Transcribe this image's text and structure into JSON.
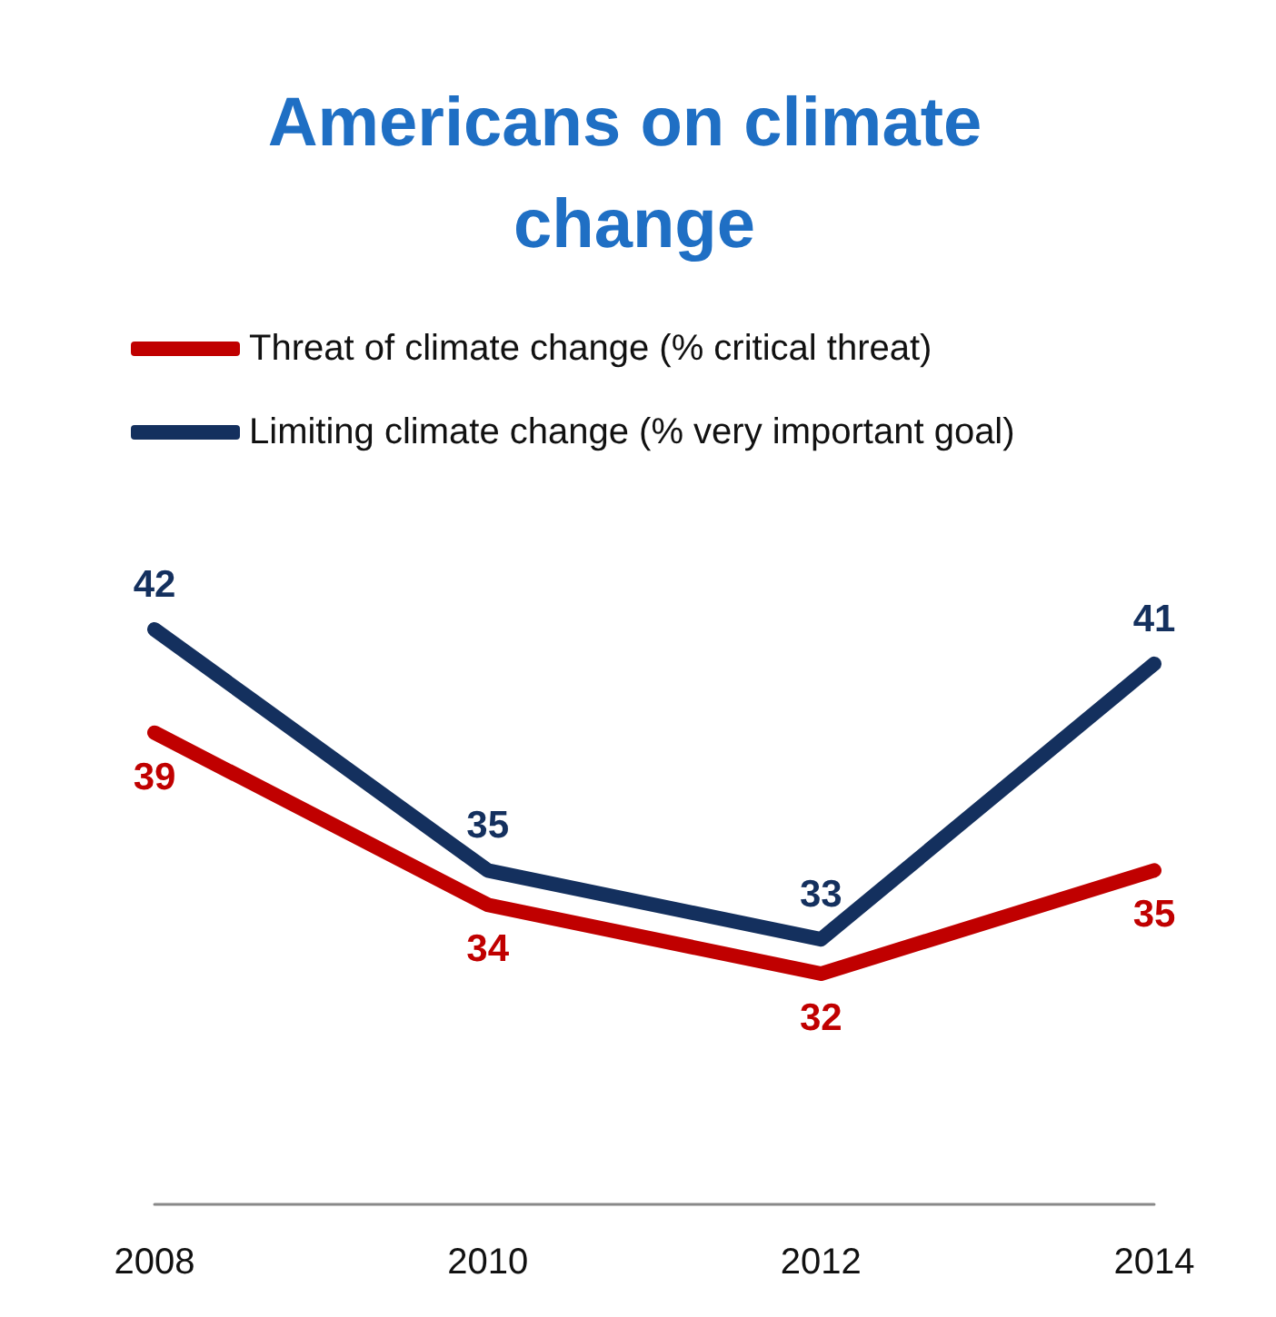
{
  "chart_data": {
    "type": "line",
    "title": "Americans on climate change",
    "categories": [
      "2008",
      "2010",
      "2012",
      "2014"
    ],
    "series": [
      {
        "name": "Threat of climate change (% critical threat)",
        "color": "#c00000",
        "values": [
          39,
          34,
          32,
          35
        ]
      },
      {
        "name": "Limiting climate change (% very important goal)",
        "color": "#14305e",
        "values": [
          42,
          35,
          33,
          41
        ]
      }
    ],
    "data_labels": true,
    "legend": "top left",
    "grid": false,
    "marker": "none",
    "line_style": "solid"
  }
}
